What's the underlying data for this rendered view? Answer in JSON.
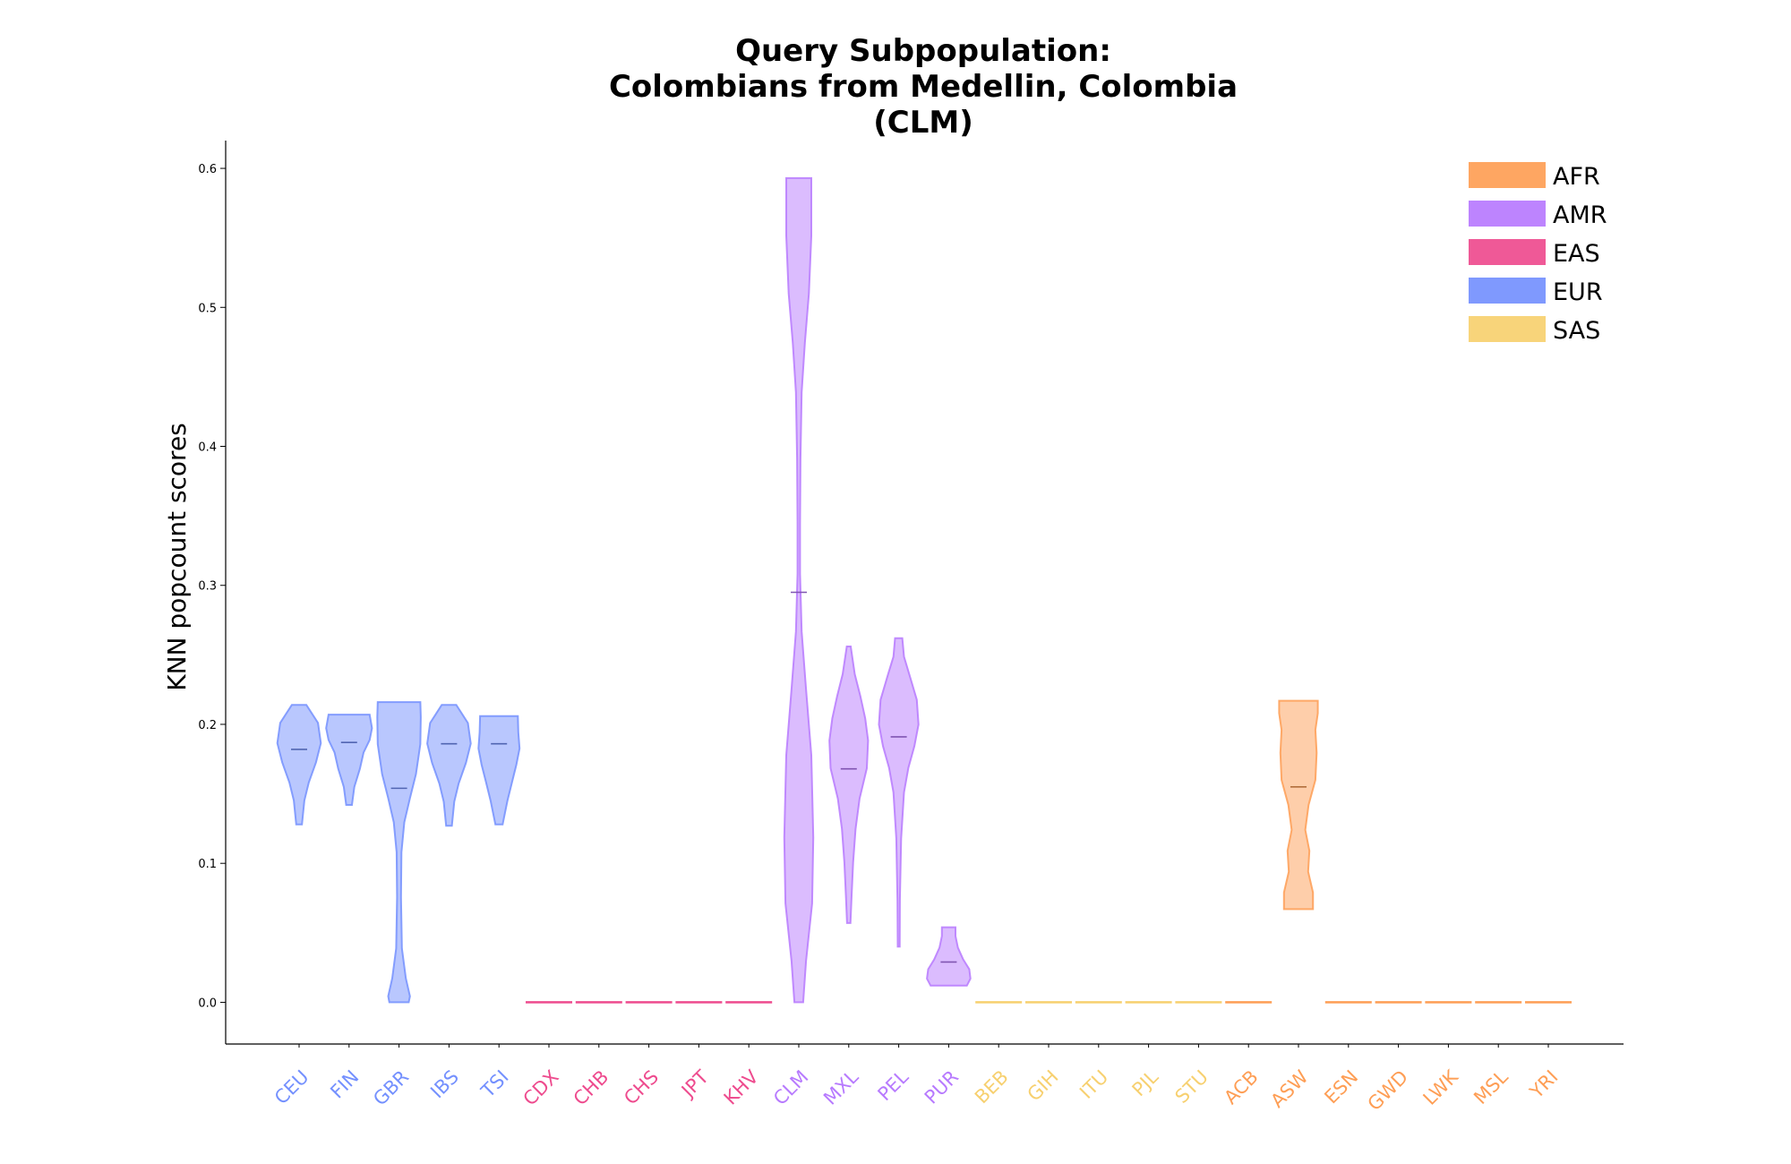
{
  "chart_data": {
    "type": "violin",
    "title": [
      "Query Subpopulation:",
      "Colombians from Medellin, Colombia",
      "(CLM)"
    ],
    "xlabel": "",
    "ylabel": "KNN popcount scores",
    "ylim": [
      -0.03,
      0.62
    ],
    "yticks": [
      "0.0",
      "0.1",
      "0.2",
      "0.3",
      "0.4",
      "0.5",
      "0.6"
    ],
    "legend": {
      "placement": "top-right",
      "entries": [
        {
          "label": "AFR",
          "color": "#fe9e55"
        },
        {
          "label": "AMR",
          "color": "#b77afe"
        },
        {
          "label": "EAS",
          "color": "#ee4b8e"
        },
        {
          "label": "EUR",
          "color": "#7490fe"
        },
        {
          "label": "SAS",
          "color": "#f7d06f"
        }
      ]
    },
    "groups": [
      {
        "name": "CEU",
        "superpop": "EUR",
        "min": 0.128,
        "max": 0.214,
        "median": 0.182
      },
      {
        "name": "FIN",
        "superpop": "EUR",
        "min": 0.142,
        "max": 0.207,
        "median": 0.187
      },
      {
        "name": "GBR",
        "superpop": "EUR",
        "min": 0.0,
        "max": 0.216,
        "median": 0.154
      },
      {
        "name": "IBS",
        "superpop": "EUR",
        "min": 0.127,
        "max": 0.214,
        "median": 0.186
      },
      {
        "name": "TSI",
        "superpop": "EUR",
        "min": 0.128,
        "max": 0.206,
        "median": 0.186
      },
      {
        "name": "CDX",
        "superpop": "EAS",
        "min": 0.0,
        "max": 0.0,
        "median": 0.0
      },
      {
        "name": "CHB",
        "superpop": "EAS",
        "min": 0.0,
        "max": 0.0,
        "median": 0.0
      },
      {
        "name": "CHS",
        "superpop": "EAS",
        "min": 0.0,
        "max": 0.0,
        "median": 0.0
      },
      {
        "name": "JPT",
        "superpop": "EAS",
        "min": 0.0,
        "max": 0.0,
        "median": 0.0
      },
      {
        "name": "KHV",
        "superpop": "EAS",
        "min": 0.0,
        "max": 0.0,
        "median": 0.0
      },
      {
        "name": "CLM",
        "superpop": "AMR",
        "min": 0.0,
        "max": 0.593,
        "median": 0.295
      },
      {
        "name": "MXL",
        "superpop": "AMR",
        "min": 0.057,
        "max": 0.256,
        "median": 0.168
      },
      {
        "name": "PEL",
        "superpop": "AMR",
        "min": 0.04,
        "max": 0.262,
        "median": 0.191
      },
      {
        "name": "PUR",
        "superpop": "AMR",
        "min": 0.012,
        "max": 0.054,
        "median": 0.029
      },
      {
        "name": "BEB",
        "superpop": "SAS",
        "min": 0.0,
        "max": 0.0,
        "median": 0.0
      },
      {
        "name": "GIH",
        "superpop": "SAS",
        "min": 0.0,
        "max": 0.0,
        "median": 0.0
      },
      {
        "name": "ITU",
        "superpop": "SAS",
        "min": 0.0,
        "max": 0.0,
        "median": 0.0
      },
      {
        "name": "PJL",
        "superpop": "SAS",
        "min": 0.0,
        "max": 0.0,
        "median": 0.0
      },
      {
        "name": "STU",
        "superpop": "SAS",
        "min": 0.0,
        "max": 0.0,
        "median": 0.0
      },
      {
        "name": "ACB",
        "superpop": "AFR",
        "min": 0.0,
        "max": 0.0,
        "median": 0.0
      },
      {
        "name": "ASW",
        "superpop": "AFR",
        "min": 0.067,
        "max": 0.217,
        "median": 0.155
      },
      {
        "name": "ESN",
        "superpop": "AFR",
        "min": 0.0,
        "max": 0.0,
        "median": 0.0
      },
      {
        "name": "GWD",
        "superpop": "AFR",
        "min": 0.0,
        "max": 0.0,
        "median": 0.0
      },
      {
        "name": "LWK",
        "superpop": "AFR",
        "min": 0.0,
        "max": 0.0,
        "median": 0.0
      },
      {
        "name": "MSL",
        "superpop": "AFR",
        "min": 0.0,
        "max": 0.0,
        "median": 0.0
      },
      {
        "name": "YRI",
        "superpop": "AFR",
        "min": 0.0,
        "max": 0.0,
        "median": 0.0
      }
    ]
  }
}
